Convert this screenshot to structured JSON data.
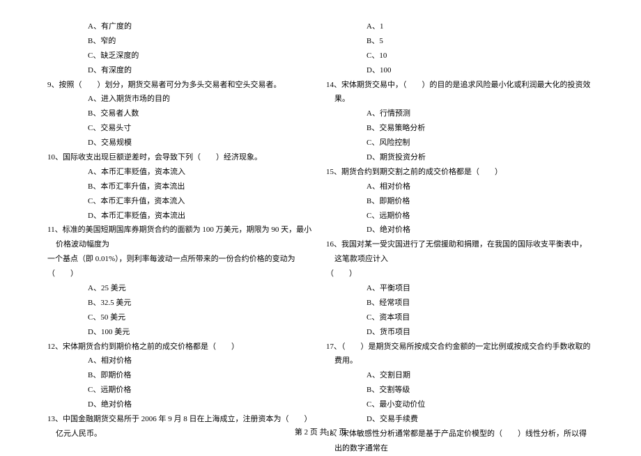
{
  "left_column": {
    "q8_options": [
      "A、有广度的",
      "B、窄的",
      "C、缺乏深度的",
      "D、有深度的"
    ],
    "q9": "9、按照（　　）划分，期货交易者可分为多头交易者和空头交易者。",
    "q9_options": [
      "A、进入期货市场的目的",
      "B、交易者人数",
      "C、交易头寸",
      "D、交易规模"
    ],
    "q10": "10、国际收支出现巨额逆差时，会导致下列（　　）经济现象。",
    "q10_options": [
      "A、本币汇率贬值，资本流入",
      "B、本币汇率升值，资本流出",
      "C、本币汇率升值，资本流入",
      "D、本币汇率贬值，资本流出"
    ],
    "q11": "11、标准的美国短期国库券期货合约的面额为 100 万美元，期限为 90 天，最小价格波动幅度为",
    "q11_cont": "一个基点（即 0.01%），则利率每波动一点所带来的一份合约价格的变动为（　　）",
    "q11_options": [
      "A、25 美元",
      "B、32.5 美元",
      "C、50 美元",
      "D、100 美元"
    ],
    "q12": "12、宋体期货合约到期价格之前的成交价格都是（　　）",
    "q12_options": [
      "A、相对价格",
      "B、即期价格",
      "C、远期价格",
      "D、绝对价格"
    ],
    "q13": "13、中国金融期货交易所于 2006 年 9 月 8 日在上海成立，注册资本为（　　）亿元人民币。"
  },
  "right_column": {
    "q13_options": [
      "A、1",
      "B、5",
      "C、10",
      "D、100"
    ],
    "q14": "14、宋体期货交易中，（　　）的目的是追求风险最小化或利润最大化的投资效果。",
    "q14_options": [
      "A、行情预测",
      "B、交易策略分析",
      "C、风险控制",
      "D、期货投资分析"
    ],
    "q15": "15、期货合约到期交割之前的成交价格都是（　　）",
    "q15_options": [
      "A、相对价格",
      "B、即期价格",
      "C、远期价格",
      "D、绝对价格"
    ],
    "q16": "16、我国对某一受灾国进行了无偿援助和捐赠，在我国的国际收支平衡表中，这笔款项应计入",
    "q16_cont": "（　　）",
    "q16_options": [
      "A、平衡项目",
      "B、经常项目",
      "C、资本项目",
      "D、货币项目"
    ],
    "q17": "17、（　　）是期货交易所按成交合约金额的一定比例或按成交合约手数收取的费用。",
    "q17_options": [
      "A、交割日期",
      "B、交割等级",
      "C、最小变动价位",
      "D、交易手续费"
    ],
    "q18": "18、宋体敏感性分析通常都是基于产品定价模型的（　　）线性分析，所以得出的数字通常在"
  },
  "footer": "第 2 页 共 17 页"
}
